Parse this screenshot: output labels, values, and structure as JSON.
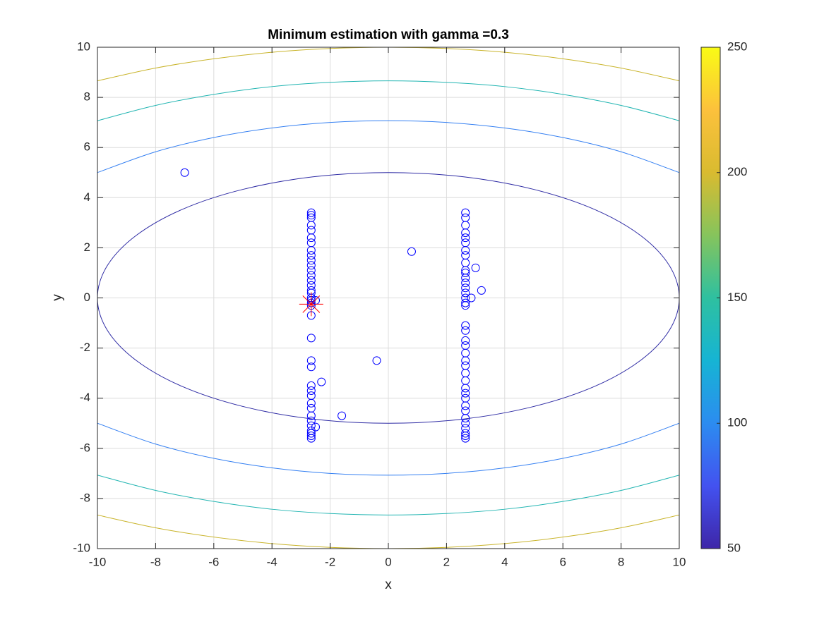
{
  "chart_data": {
    "type": "contour",
    "title": "Minimum estimation with gamma =0.3",
    "x_label": "x",
    "y_label": "y",
    "xlim": [
      -10,
      10
    ],
    "ylim": [
      -10,
      10
    ],
    "xticks": [
      -10,
      -8,
      -6,
      -4,
      -2,
      0,
      2,
      4,
      6,
      8,
      10
    ],
    "yticks": [
      -10,
      -8,
      -6,
      -4,
      -2,
      0,
      2,
      4,
      6,
      8,
      10
    ],
    "grid": true,
    "series": [
      {
        "level": 50,
        "color": "#2e2ba4",
        "x": [
          10,
          9.66,
          8.66,
          7.07,
          5,
          2.59,
          0,
          -2.59,
          -5,
          -7.07,
          -8.66,
          -9.66,
          -10,
          -9.66,
          -8.66,
          -7.07,
          -5,
          -2.59,
          0,
          2.59,
          5,
          7.07,
          8.66,
          9.66,
          10
        ],
        "y": [
          0,
          1.29,
          2.5,
          3.54,
          4.33,
          4.83,
          5,
          4.83,
          4.33,
          3.54,
          2.5,
          1.29,
          0,
          -1.29,
          -2.5,
          -3.54,
          -4.33,
          -4.83,
          -5,
          -4.83,
          -4.33,
          -3.54,
          -2.5,
          -1.29,
          0
        ]
      },
      {
        "level": 100,
        "color": "#3580f2",
        "x": [
          -10,
          -8,
          -6,
          -4,
          -2,
          0,
          2,
          4,
          6,
          8,
          10,
          null,
          -10,
          -8,
          -6,
          -4,
          -2,
          0,
          2,
          4,
          6,
          8,
          10
        ],
        "y": [
          5,
          5.83,
          6.4,
          6.78,
          7,
          7.07,
          7,
          6.78,
          6.4,
          5.83,
          5,
          null,
          -5,
          -5.83,
          -6.4,
          -6.78,
          -7,
          -7.07,
          -7,
          -6.78,
          -6.4,
          -5.83,
          -5
        ]
      },
      {
        "level": 150,
        "color": "#22b5b2",
        "x": [
          -10,
          -8,
          -6,
          -4,
          -2,
          0,
          2,
          4,
          6,
          8,
          10,
          null,
          -10,
          -8,
          -6,
          -4,
          -2,
          0,
          2,
          4,
          6,
          8,
          10
        ],
        "y": [
          7.07,
          7.68,
          8.12,
          8.43,
          8.6,
          8.66,
          8.6,
          8.43,
          8.12,
          7.68,
          7.07,
          null,
          -7.07,
          -7.68,
          -8.12,
          -8.43,
          -8.6,
          -8.66,
          -8.6,
          -8.43,
          -8.12,
          -7.68,
          -7.07
        ]
      },
      {
        "level": 200,
        "color": "#c9b42b",
        "x": [
          -10,
          -8,
          -6,
          -4,
          -2,
          0,
          2,
          4,
          6,
          8,
          10,
          null,
          -10,
          -8,
          -6,
          -4,
          -2,
          0,
          2,
          4,
          6,
          8,
          10
        ],
        "y": [
          8.66,
          9.17,
          9.54,
          9.8,
          9.95,
          10,
          9.95,
          9.8,
          9.54,
          9.17,
          8.66,
          null,
          -8.66,
          -9.17,
          -9.54,
          -9.8,
          -9.95,
          -10,
          -9.95,
          -9.8,
          -9.54,
          -9.17,
          -8.66
        ]
      }
    ],
    "points": [
      {
        "marker": "o",
        "color": "#0000ff",
        "x": [
          -2.65,
          -2.65,
          -2.65,
          -2.65,
          -2.65,
          -2.65,
          -2.65,
          -2.65,
          -2.65,
          -2.65,
          -2.65,
          -2.65,
          -2.65,
          -2.65,
          -2.65,
          -2.65,
          -2.65,
          -2.65,
          -2.65,
          -2.65,
          -2.65,
          -2.65,
          -2.65,
          -2.65,
          -2.65,
          -2.65,
          -2.65,
          -2.65,
          -2.65,
          -2.65,
          -2.65,
          -2.65,
          -2.65,
          -2.65,
          -2.65,
          -2.65,
          -2.65
        ],
        "y": [
          3.4,
          3.3,
          3.2,
          2.9,
          2.7,
          2.4,
          2.2,
          1.9,
          1.7,
          1.5,
          1.3,
          1.1,
          0.9,
          0.7,
          0.5,
          0.3,
          0.2,
          0,
          -0.1,
          -0.2,
          -0.3,
          -0.7,
          -1.6,
          -2.5,
          -2.75,
          -3.5,
          -3.7,
          -3.9,
          -4.2,
          -4.4,
          -4.7,
          -4.9,
          -5.1,
          -5.3,
          -5.4,
          -5.5,
          -5.6
        ]
      },
      {
        "marker": "o",
        "color": "#0000ff",
        "x": [
          2.65,
          2.65,
          2.65,
          2.65,
          2.65,
          2.65,
          2.65,
          2.65,
          2.65,
          2.65,
          2.65,
          2.65,
          2.65,
          2.65,
          2.65,
          2.65,
          2.65,
          2.65,
          2.65,
          2.65,
          2.65,
          2.65,
          2.65,
          2.65,
          2.65,
          2.65,
          2.65,
          2.65,
          2.65,
          2.65,
          2.65,
          2.65,
          2.65,
          2.65,
          2.65,
          2.65,
          2.65,
          2.65
        ],
        "y": [
          3.4,
          3.2,
          2.9,
          2.6,
          2.4,
          2.2,
          1.9,
          1.7,
          1.4,
          1.1,
          1,
          0.8,
          0.6,
          0.4,
          0.2,
          0,
          -0.2,
          -0.3,
          -1.1,
          -1.3,
          -1.7,
          -1.9,
          -2.2,
          -2.5,
          -2.7,
          -3,
          -3.3,
          -3.6,
          -3.8,
          -4,
          -4.3,
          -4.5,
          -4.8,
          -5,
          -5.2,
          -5.4,
          -5.5,
          -5.6
        ]
      },
      {
        "marker": "o",
        "color": "#0000ff",
        "x": [
          -2.5,
          -2.5,
          -2.3,
          -1.6,
          -0.4,
          0.8,
          -7,
          3,
          3.2,
          2.85
        ],
        "y": [
          -0.1,
          -5.15,
          -3.35,
          -4.7,
          -2.5,
          1.85,
          5,
          1.2,
          0.3,
          0
        ]
      },
      {
        "marker": "*",
        "color": "#ff0000",
        "x": [
          -2.65
        ],
        "y": [
          -0.25
        ]
      }
    ],
    "colorbar": {
      "lim": [
        50,
        250
      ],
      "ticks": [
        50,
        100,
        150,
        200,
        250
      ],
      "colormap": [
        "#3e26a8",
        "#4352f0",
        "#2c8cf0",
        "#16b4d4",
        "#2ec0a0",
        "#86c45c",
        "#d9bb30",
        "#fcc13c",
        "#f9fb15"
      ]
    }
  }
}
